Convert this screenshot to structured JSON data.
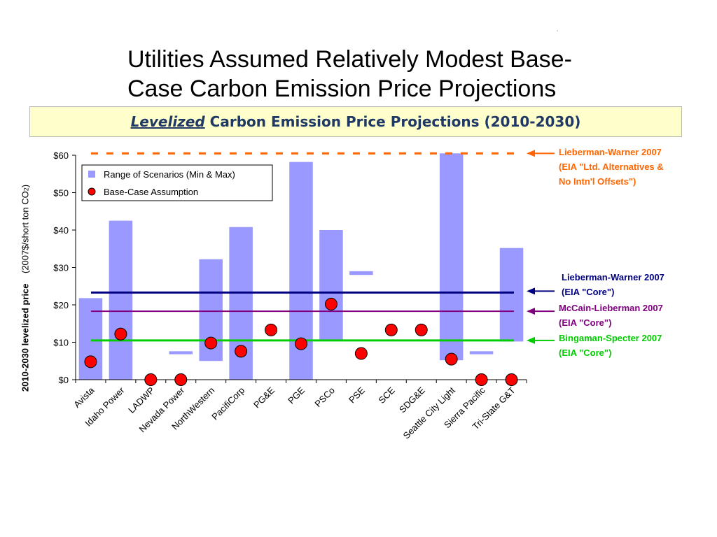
{
  "slide": {
    "mark": "'",
    "title_line1": "Utilities Assumed Relatively Modest Base-",
    "title_line2": "Case Carbon Emission Price Projections",
    "subtitle_em": "Levelized",
    "subtitle_rest": " Carbon Emission Price Projections (2010-2030)"
  },
  "chart_data": {
    "type": "bar",
    "subtype": "floating range bars with base-case markers",
    "ylabel_bold": "2010-2030 levelized price",
    "ylabel_units": "(2007$/short ton CO",
    "ylabel_units_sub": "2",
    "ylabel_units_close": ")",
    "ylim": [
      0,
      60
    ],
    "yticks": [
      0,
      10,
      20,
      30,
      40,
      50,
      60
    ],
    "ytick_labels": [
      "$0",
      "$10",
      "$20",
      "$30",
      "$40",
      "$50",
      "$60"
    ],
    "grid": false,
    "legend_position": "top-left",
    "categories": [
      "Avista",
      "Idaho Power",
      "LADWP",
      "Nevada Power",
      "NorthWestern",
      "PacifiCorp",
      "PG&E",
      "PGE",
      "PSCo",
      "PSE",
      "SCE",
      "SDG&E",
      "Seattle City Light",
      "Sierra Pacific",
      "Tri-State G&T"
    ],
    "series": [
      {
        "name": "Range of Scenarios (Min & Max)",
        "kind": "range-bar",
        "color": "#9999ff",
        "min": [
          0,
          0,
          null,
          6.8,
          5,
          0,
          null,
          0,
          10.5,
          28,
          null,
          null,
          5.2,
          6.8,
          10.2
        ],
        "max": [
          21.8,
          42.5,
          null,
          7.6,
          32.2,
          40.8,
          null,
          58.2,
          40,
          29,
          null,
          null,
          60.5,
          7.6,
          35.2
        ]
      },
      {
        "name": "Base-Case Assumption",
        "kind": "marker",
        "color": "#ff0000",
        "values": [
          4.8,
          12.2,
          0,
          0,
          9.8,
          7.6,
          13.3,
          9.6,
          20.2,
          7.0,
          13.3,
          13.3,
          5.5,
          0,
          0
        ]
      }
    ],
    "reference_lines": [
      {
        "value": 60.5,
        "color": "#ff6600",
        "style": "dashed",
        "label": [
          "Lieberman-Warner 2007",
          "(EIA \"Ltd. Alternatives &",
          "No Intn'l Offsets\")"
        ]
      },
      {
        "value": 23.3,
        "color": "#000080",
        "style": "solid",
        "label": [
          "Lieberman-Warner 2007",
          "(EIA \"Core\")"
        ]
      },
      {
        "value": 18.3,
        "color": "#800080",
        "style": "solid",
        "label": [
          "McCain-Lieberman 2007",
          "(EIA \"Core\")"
        ]
      },
      {
        "value": 10.5,
        "color": "#00cc00",
        "style": "solid",
        "label": [
          "Bingaman-Specter 2007",
          "(EIA \"Core\")"
        ]
      }
    ]
  }
}
